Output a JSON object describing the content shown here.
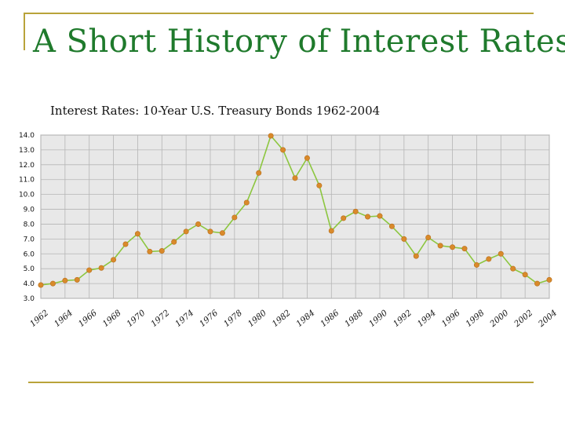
{
  "slide": {
    "title": "A Short History of Interest Rates"
  },
  "colors": {
    "accent_rule": "#b9a33a",
    "title": "#1f7a2c",
    "plot_bg": "#e8e8e8",
    "grid": "#b5b5b5",
    "line": "#8cc63f",
    "marker": "#d98a2b"
  },
  "chart_data": {
    "type": "line",
    "title": "Interest Rates: 10-Year U.S. Treasury Bonds 1962-2004",
    "xlabel": "",
    "ylabel": "",
    "ylim": [
      3.0,
      14.0
    ],
    "xlim": [
      1962,
      2004
    ],
    "grid": true,
    "legend": "none",
    "y_ticks": [
      "3.0",
      "4.0",
      "5.0",
      "6.0",
      "7.0",
      "8.0",
      "9.0",
      "10.0",
      "11.0",
      "12.0",
      "13.0",
      "14.0"
    ],
    "x_ticks": [
      "1962",
      "1964",
      "1966",
      "1968",
      "1970",
      "1972",
      "1974",
      "1976",
      "1978",
      "1980",
      "1982",
      "1984",
      "1986",
      "1988",
      "1990",
      "1992",
      "1994",
      "1996",
      "1998",
      "2000",
      "2002",
      "2004"
    ],
    "series": [
      {
        "x": [
          1962,
          1963,
          1964,
          1965,
          1966,
          1967,
          1968,
          1969,
          1970,
          1971,
          1972,
          1973,
          1974,
          1975,
          1976,
          1977,
          1978,
          1979,
          1980,
          1981,
          1982,
          1983,
          1984,
          1985,
          1986,
          1987,
          1988,
          1989,
          1990,
          1991,
          1992,
          1993,
          1994,
          1995,
          1996,
          1997,
          1998,
          1999,
          2000,
          2001,
          2002,
          2003,
          2004
        ],
        "values": [
          3.9,
          4.0,
          4.2,
          4.25,
          4.9,
          5.05,
          5.6,
          6.65,
          7.35,
          6.15,
          6.2,
          6.8,
          7.5,
          8.0,
          7.5,
          7.4,
          8.45,
          9.45,
          11.45,
          13.95,
          13.0,
          11.1,
          12.45,
          10.6,
          7.55,
          8.4,
          8.85,
          8.5,
          8.55,
          7.85,
          7.0,
          5.85,
          7.1,
          6.55,
          6.45,
          6.35,
          5.25,
          5.65,
          6.0,
          5.0,
          4.6,
          4.0,
          4.25
        ]
      }
    ]
  }
}
